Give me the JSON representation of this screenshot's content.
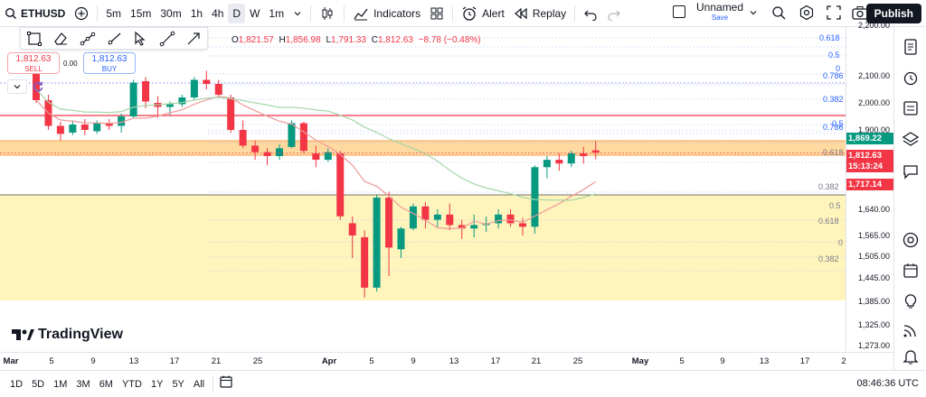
{
  "toolbar": {
    "symbol": "ETHUSD",
    "intervals": [
      "5m",
      "15m",
      "30m",
      "1h",
      "4h",
      "D",
      "W",
      "1m"
    ],
    "selected_interval": "D",
    "indicators_label": "Indicators",
    "alert_label": "Alert",
    "replay_label": "Replay",
    "layout_name": "Unnamed",
    "layout_status": "Save",
    "publish_label": "Publish"
  },
  "ohlc": {
    "o_label": "O",
    "o": "1,821.57",
    "h_label": "H",
    "h": "1,856.98",
    "l_label": "L",
    "l": "1,791.33",
    "c_label": "C",
    "c": "1,812.63",
    "change": "−8.78 (−0.48%)"
  },
  "trade": {
    "sell_price": "1,812.63",
    "sell_label": "SELL",
    "buy_price": "1,812.63",
    "buy_label": "BUY",
    "spread": "0.00"
  },
  "price_scale": {
    "labels": [
      "2,200.00",
      "2,100.00",
      "2,000.00",
      "1,900.00",
      "1,640.00",
      "1,565.00",
      "1,505.00",
      "1,445.00",
      "1,385.00",
      "1,325.00",
      "1,273.00"
    ],
    "tag_green": "1,869.22",
    "tag_current": "1,812.63",
    "tag_countdown": "15:13:24",
    "tag_ma": "1,717.14"
  },
  "fib_labels": [
    "0.618",
    "0.5",
    "0",
    "0.786",
    "0.382",
    "0.5",
    "0.786",
    "0.618",
    "0.382",
    "0.5",
    "0.618",
    "0",
    "0.382"
  ],
  "time_axis": [
    "Mar",
    "5",
    "9",
    "13",
    "17",
    "21",
    "25",
    "Apr",
    "5",
    "9",
    "13",
    "17",
    "21",
    "25",
    "May",
    "5",
    "9",
    "13",
    "17",
    "2"
  ],
  "bottom": {
    "ranges": [
      "1D",
      "5D",
      "1M",
      "3M",
      "6M",
      "YTD",
      "1Y",
      "5Y",
      "All"
    ],
    "clock": "08:46:36 UTC"
  },
  "brand": "TradingView",
  "colors": {
    "up": "#089981",
    "down": "#f23645",
    "orange_zone": "#ffcc80",
    "yellow_zone": "#fff3b0"
  },
  "chart_data": {
    "type": "candlestick",
    "title": "",
    "candles": [
      [
        2110,
        2140,
        2000,
        2010
      ],
      [
        2010,
        2030,
        1900,
        1915
      ],
      [
        1915,
        1930,
        1860,
        1885
      ],
      [
        1890,
        1935,
        1880,
        1920
      ],
      [
        1920,
        1940,
        1880,
        1900
      ],
      [
        1895,
        1935,
        1885,
        1925
      ],
      [
        1925,
        1940,
        1900,
        1915
      ],
      [
        1915,
        1960,
        1890,
        1950
      ],
      [
        1950,
        2085,
        1945,
        2075
      ],
      [
        2080,
        2095,
        1980,
        2005
      ],
      [
        2000,
        2025,
        1945,
        1985
      ],
      [
        1985,
        2005,
        1955,
        1995
      ],
      [
        1995,
        2030,
        1985,
        2020
      ],
      [
        2020,
        2095,
        2010,
        2085
      ],
      [
        2085,
        2110,
        2050,
        2070
      ],
      [
        2070,
        2085,
        2020,
        2030
      ],
      [
        2020,
        2030,
        1890,
        1900
      ],
      [
        1900,
        1935,
        1830,
        1840
      ],
      [
        1840,
        1860,
        1790,
        1815
      ],
      [
        1815,
        1830,
        1775,
        1800
      ],
      [
        1800,
        1845,
        1790,
        1830
      ],
      [
        1835,
        1935,
        1830,
        1925
      ],
      [
        1925,
        1930,
        1810,
        1820
      ],
      [
        1810,
        1840,
        1770,
        1790
      ],
      [
        1790,
        1830,
        1785,
        1815
      ],
      [
        1810,
        1820,
        1610,
        1620
      ],
      [
        1600,
        1620,
        1500,
        1565
      ],
      [
        1560,
        1580,
        1395,
        1420
      ],
      [
        1420,
        1690,
        1410,
        1680
      ],
      [
        1680,
        1700,
        1450,
        1530
      ],
      [
        1525,
        1590,
        1500,
        1585
      ],
      [
        1585,
        1660,
        1580,
        1650
      ],
      [
        1650,
        1665,
        1585,
        1610
      ],
      [
        1610,
        1640,
        1590,
        1625
      ],
      [
        1625,
        1660,
        1580,
        1595
      ],
      [
        1595,
        1610,
        1555,
        1585
      ],
      [
        1585,
        1625,
        1560,
        1595
      ],
      [
        1595,
        1620,
        1575,
        1600
      ],
      [
        1600,
        1640,
        1585,
        1625
      ],
      [
        1625,
        1640,
        1590,
        1600
      ],
      [
        1600,
        1615,
        1565,
        1590
      ],
      [
        1590,
        1775,
        1570,
        1770
      ],
      [
        1770,
        1800,
        1740,
        1790
      ],
      [
        1790,
        1810,
        1760,
        1780
      ],
      [
        1780,
        1820,
        1770,
        1810
      ],
      [
        1810,
        1835,
        1780,
        1800
      ],
      [
        1822,
        1857,
        1791,
        1813
      ]
    ]
  }
}
